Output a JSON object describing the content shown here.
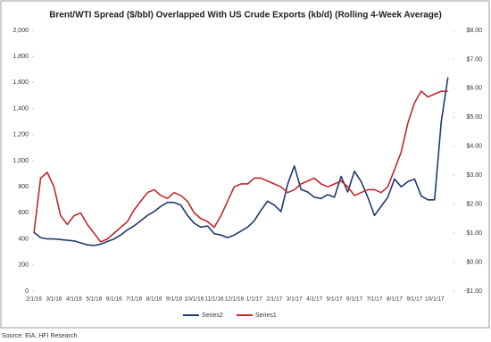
{
  "chart_data": {
    "type": "line",
    "title": "Brent/WTI Spread ($/bbl) Overlapped With US Crude Exports (kb/d) (Rolling 4-Week Average)",
    "source": "Source: EIA, HFI Research",
    "categories": [
      "2/1/16",
      null,
      null,
      "3/1/16",
      null,
      null,
      "4/1/16",
      null,
      null,
      "5/1/16",
      null,
      null,
      "6/1/16",
      null,
      null,
      "7/1/16",
      null,
      null,
      "8/1/16",
      null,
      null,
      "9/1/16",
      null,
      null,
      "10/1/16",
      null,
      null,
      "11/1/16",
      null,
      null,
      "12/1/16",
      null,
      null,
      "1/1/17",
      null,
      null,
      "2/1/17",
      null,
      null,
      "3/1/17",
      null,
      null,
      "4/1/17",
      null,
      null,
      "5/1/17",
      null,
      null,
      "6/1/17",
      null,
      null,
      "7/1/17",
      null,
      null,
      "8/1/17",
      null,
      null,
      "9/1/17",
      null,
      null,
      "10/1/17",
      null,
      null
    ],
    "series": [
      {
        "name": "Series2",
        "color": "#1f3a6e",
        "axis": "y",
        "values": [
          450,
          410,
          400,
          400,
          395,
          390,
          385,
          370,
          355,
          350,
          360,
          380,
          400,
          430,
          470,
          500,
          540,
          580,
          610,
          650,
          680,
          680,
          660,
          580,
          520,
          490,
          500,
          440,
          430,
          410,
          430,
          460,
          490,
          540,
          620,
          690,
          660,
          610,
          820,
          960,
          780,
          760,
          720,
          710,
          740,
          720,
          880,
          760,
          920,
          840,
          720,
          580,
          650,
          720,
          860,
          800,
          840,
          860,
          730,
          700,
          700,
          1300,
          1640
        ]
      },
      {
        "name": "Series1",
        "color": "#c0272d",
        "axis": "y2",
        "values": [
          1.0,
          2.9,
          3.1,
          2.6,
          1.6,
          1.3,
          1.6,
          1.7,
          1.3,
          1.0,
          0.7,
          0.8,
          1.0,
          1.2,
          1.4,
          1.8,
          2.1,
          2.4,
          2.5,
          2.3,
          2.2,
          2.4,
          2.3,
          2.1,
          1.7,
          1.5,
          1.4,
          1.2,
          1.6,
          2.1,
          2.6,
          2.7,
          2.7,
          2.9,
          2.9,
          2.8,
          2.7,
          2.6,
          2.4,
          2.5,
          2.7,
          2.8,
          2.9,
          2.7,
          2.6,
          2.7,
          2.8,
          2.6,
          2.3,
          2.4,
          2.5,
          2.5,
          2.4,
          2.6,
          3.2,
          3.8,
          4.8,
          5.5,
          5.9,
          5.7,
          5.8,
          5.9,
          5.9
        ]
      }
    ],
    "ylim": [
      0,
      2000
    ],
    "yticks": [
      0,
      200,
      400,
      600,
      800,
      {
        "value": 1000,
        "label": "1,000"
      },
      {
        "value": 1200,
        "label": "1,200"
      },
      {
        "value": 1400,
        "label": "1,400"
      },
      {
        "value": 1600,
        "label": "1,600"
      },
      {
        "value": 1800,
        "label": "1,800"
      },
      {
        "value": 2000,
        "label": "2,000"
      }
    ],
    "y2lim": [
      -1,
      8
    ],
    "y2ticks": [
      {
        "value": -1,
        "label": "-$1.00"
      },
      {
        "value": 0,
        "label": "$0.00"
      },
      {
        "value": 1,
        "label": "$1.00"
      },
      {
        "value": 2,
        "label": "$2.00"
      },
      {
        "value": 3,
        "label": "$3.00"
      },
      {
        "value": 4,
        "label": "$4.00"
      },
      {
        "value": 5,
        "label": "$5.00"
      },
      {
        "value": 6,
        "label": "$6.00"
      },
      {
        "value": 7,
        "label": "$7.00"
      },
      {
        "value": 8,
        "label": "$8.00"
      }
    ],
    "grid": false,
    "legend": "bottom"
  }
}
